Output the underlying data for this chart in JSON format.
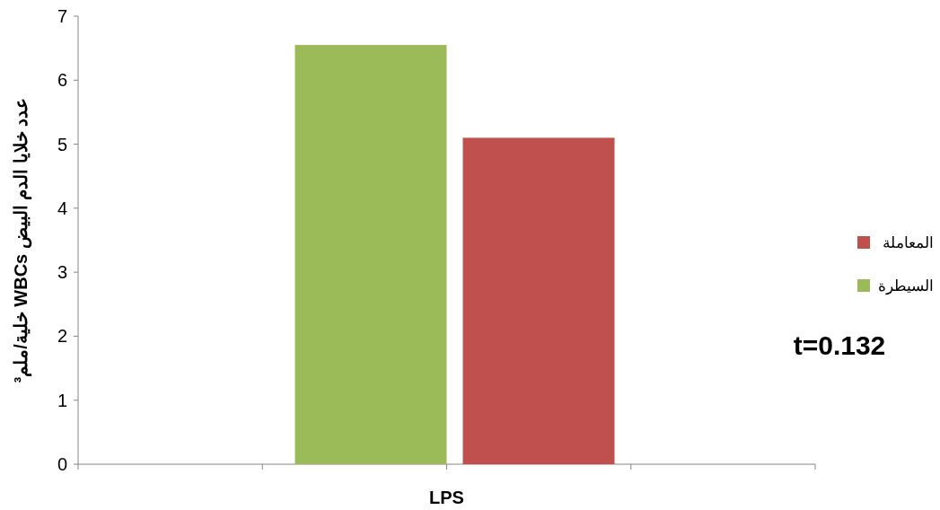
{
  "chart_data": {
    "type": "bar",
    "categories": [
      "LPS"
    ],
    "ylabel": "عدد خلايا الدم البيض WBCs خلية/ملم³",
    "series": [
      {
        "name": "السيطرة",
        "color": "#9bbb59",
        "values": [
          6.55
        ]
      },
      {
        "name": "المعاملة",
        "color": "#c0504d",
        "values": [
          5.1
        ]
      }
    ],
    "ylim": [
      0,
      7
    ],
    "yticks": [
      0,
      1,
      2,
      3,
      4,
      5,
      6,
      7
    ],
    "grid": false,
    "legend": "right",
    "annotations": [
      "t=0.132"
    ]
  }
}
